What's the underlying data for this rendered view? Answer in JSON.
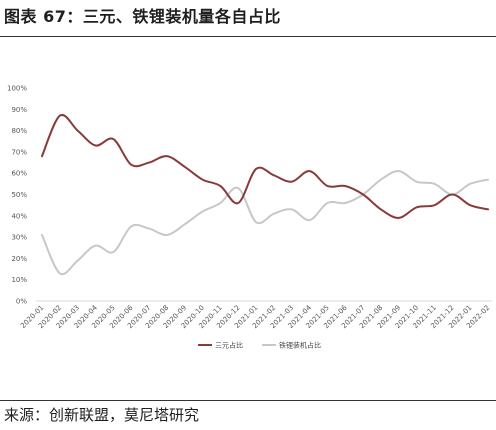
{
  "figure": {
    "title": "图表 67：三元、铁锂装机量各自占比",
    "source": "来源：创新联盟，莫尼塔研究"
  },
  "colors": {
    "series_sanyuan": "#8b3a3a",
    "series_lfp": "#c8c8c8",
    "axis": "#d9d9d9",
    "text": "#1f1f1f"
  },
  "chart_data": {
    "type": "line",
    "title": "",
    "xlabel": "",
    "ylabel": "",
    "ylim": [
      0,
      100
    ],
    "yticks": [
      "0%",
      "10%",
      "20%",
      "30%",
      "40%",
      "50%",
      "60%",
      "70%",
      "80%",
      "90%",
      "100%"
    ],
    "grid": false,
    "legend": "bottom-center",
    "x": [
      "2020-01",
      "2020-02",
      "2020-03",
      "2020-04",
      "2020-05",
      "2020-06",
      "2020-07",
      "2020-08",
      "2020-09",
      "2020-10",
      "2020-11",
      "2020-12",
      "2021-01",
      "2021-02",
      "2021-03",
      "2021-04",
      "2021-05",
      "2021-06",
      "2021-07",
      "2021-08",
      "2021-09",
      "2021-10",
      "2021-11",
      "2021-12",
      "2022-01",
      "2022-02"
    ],
    "series": [
      {
        "name": "三元占比",
        "values": [
          68,
          87,
          80,
          73,
          76,
          64,
          65,
          68,
          63,
          57,
          54,
          46,
          62,
          59,
          56,
          61,
          54,
          54,
          50,
          43,
          39,
          44,
          45,
          50,
          45,
          43
        ]
      },
      {
        "name": "铁锂装机占比",
        "values": [
          31,
          13,
          19,
          26,
          23,
          35,
          34,
          31,
          36,
          42,
          46,
          53,
          37,
          41,
          43,
          38,
          46,
          46,
          50,
          57,
          61,
          56,
          55,
          50,
          55,
          57
        ]
      }
    ]
  }
}
